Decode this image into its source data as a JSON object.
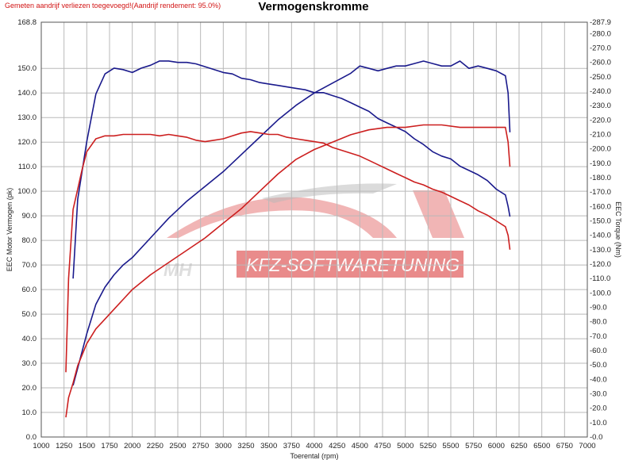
{
  "header": {
    "note": "Gemeten aandrijf verliezen toegevoegd!(Aandrijf rendement: 95.0%)",
    "title": "Vermogenskromme"
  },
  "watermark": {
    "left_text": "MH",
    "banner_text": "KFZ-SOFTWARETUNING"
  },
  "colors": {
    "blue_series": "#1a1a8c",
    "red_series": "#cc1f1f",
    "grid": "#b9b9b9",
    "watermark_red": "#e05a5a",
    "watermark_gray": "#b8b8b8"
  },
  "chart_data": {
    "type": "line",
    "title": "Vermogenskromme",
    "xlabel": "Toerental (rpm)",
    "ylabel_left": "EEC Motor Vermogen (pk)",
    "ylabel_right": "EEC Torque (Nm)",
    "xlim": [
      1000,
      7000
    ],
    "ylim_left": [
      0,
      168.8
    ],
    "ylim_right": [
      0,
      287.9
    ],
    "x_ticks": [
      1000,
      1250,
      1500,
      1750,
      2000,
      2250,
      2500,
      2750,
      3000,
      3250,
      3500,
      3750,
      4000,
      4250,
      4500,
      4750,
      5000,
      5250,
      5500,
      5750,
      6000,
      6250,
      6500,
      6750,
      7000
    ],
    "y_left_ticks": [
      "0.0",
      "10.0",
      "20.0",
      "30.0",
      "40.0",
      "50.0",
      "60.0",
      "70.0",
      "80.0",
      "90.0",
      "100.0",
      "110.0",
      "120.0",
      "130.0",
      "140.0",
      "150.0",
      "168.8"
    ],
    "y_left_tick_values": [
      0,
      10,
      20,
      30,
      40,
      50,
      60,
      70,
      80,
      90,
      100,
      110,
      120,
      130,
      140,
      150,
      168.8
    ],
    "y_right_ticks": [
      "0.0",
      "10.0",
      "20.0",
      "30.0",
      "40.0",
      "50.0",
      "60.0",
      "70.0",
      "80.0",
      "90.0",
      "100.0",
      "110.0",
      "120.0",
      "130.0",
      "140.0",
      "150.0",
      "160.0",
      "170.0",
      "180.0",
      "190.0",
      "200.0",
      "210.0",
      "220.0",
      "230.0",
      "240.0",
      "250.0",
      "260.0",
      "270.0",
      "280.0",
      "287.9"
    ],
    "y_right_tick_values": [
      0,
      10,
      20,
      30,
      40,
      50,
      60,
      70,
      80,
      90,
      100,
      110,
      120,
      130,
      140,
      150,
      160,
      170,
      180,
      190,
      200,
      210,
      220,
      230,
      240,
      250,
      260,
      270,
      280,
      287.9
    ],
    "grid": true,
    "series": [
      {
        "kind": "torque",
        "axis": "right",
        "color": "#1a1a8c",
        "points": [
          [
            1350,
            110
          ],
          [
            1400,
            165
          ],
          [
            1500,
            205
          ],
          [
            1600,
            238
          ],
          [
            1700,
            252
          ],
          [
            1800,
            256
          ],
          [
            1900,
            255
          ],
          [
            2000,
            253
          ],
          [
            2100,
            256
          ],
          [
            2200,
            258
          ],
          [
            2300,
            261
          ],
          [
            2400,
            261
          ],
          [
            2500,
            260
          ],
          [
            2600,
            260
          ],
          [
            2700,
            259
          ],
          [
            2800,
            257
          ],
          [
            2900,
            255
          ],
          [
            3000,
            253
          ],
          [
            3100,
            252
          ],
          [
            3200,
            249
          ],
          [
            3300,
            248
          ],
          [
            3400,
            246
          ],
          [
            3500,
            245
          ],
          [
            3600,
            244
          ],
          [
            3700,
            243
          ],
          [
            3800,
            242
          ],
          [
            3900,
            241
          ],
          [
            4000,
            239
          ],
          [
            4100,
            239
          ],
          [
            4200,
            237
          ],
          [
            4300,
            235
          ],
          [
            4400,
            232
          ],
          [
            4500,
            229
          ],
          [
            4600,
            226
          ],
          [
            4700,
            221
          ],
          [
            4800,
            218
          ],
          [
            4900,
            215
          ],
          [
            5000,
            212
          ],
          [
            5100,
            207
          ],
          [
            5200,
            203
          ],
          [
            5300,
            198
          ],
          [
            5400,
            195
          ],
          [
            5500,
            193
          ],
          [
            5600,
            188
          ],
          [
            5700,
            185
          ],
          [
            5800,
            182
          ],
          [
            5900,
            178
          ],
          [
            6000,
            172
          ],
          [
            6100,
            168
          ],
          [
            6130,
            160
          ],
          [
            6150,
            153
          ]
        ]
      },
      {
        "kind": "power",
        "axis": "left",
        "color": "#1a1a8c",
        "points": [
          [
            1350,
            21
          ],
          [
            1400,
            28
          ],
          [
            1500,
            42
          ],
          [
            1600,
            54
          ],
          [
            1700,
            61
          ],
          [
            1800,
            66
          ],
          [
            1900,
            70
          ],
          [
            2000,
            73
          ],
          [
            2200,
            81
          ],
          [
            2400,
            89
          ],
          [
            2600,
            96
          ],
          [
            2800,
            102
          ],
          [
            3000,
            108
          ],
          [
            3200,
            115
          ],
          [
            3400,
            122
          ],
          [
            3600,
            129
          ],
          [
            3800,
            135
          ],
          [
            4000,
            140
          ],
          [
            4200,
            144
          ],
          [
            4400,
            148
          ],
          [
            4500,
            151
          ],
          [
            4600,
            150
          ],
          [
            4700,
            149
          ],
          [
            4800,
            150
          ],
          [
            4900,
            151
          ],
          [
            5000,
            151
          ],
          [
            5100,
            152
          ],
          [
            5200,
            153
          ],
          [
            5300,
            152
          ],
          [
            5400,
            151
          ],
          [
            5500,
            151
          ],
          [
            5600,
            153
          ],
          [
            5700,
            150
          ],
          [
            5800,
            151
          ],
          [
            5900,
            150
          ],
          [
            6000,
            149
          ],
          [
            6100,
            147
          ],
          [
            6130,
            140
          ],
          [
            6150,
            124
          ]
        ]
      },
      {
        "kind": "torque",
        "axis": "right",
        "color": "#cc1f1f",
        "points": [
          [
            1270,
            45
          ],
          [
            1300,
            110
          ],
          [
            1350,
            158
          ],
          [
            1400,
            172
          ],
          [
            1450,
            186
          ],
          [
            1500,
            198
          ],
          [
            1600,
            207
          ],
          [
            1700,
            209
          ],
          [
            1800,
            209
          ],
          [
            1900,
            210
          ],
          [
            2000,
            210
          ],
          [
            2100,
            210
          ],
          [
            2200,
            210
          ],
          [
            2300,
            209
          ],
          [
            2400,
            210
          ],
          [
            2500,
            209
          ],
          [
            2600,
            208
          ],
          [
            2700,
            206
          ],
          [
            2800,
            205
          ],
          [
            2900,
            206
          ],
          [
            3000,
            207
          ],
          [
            3100,
            209
          ],
          [
            3200,
            211
          ],
          [
            3300,
            212
          ],
          [
            3400,
            211
          ],
          [
            3500,
            210
          ],
          [
            3600,
            210
          ],
          [
            3700,
            208
          ],
          [
            3800,
            207
          ],
          [
            3900,
            206
          ],
          [
            4000,
            205
          ],
          [
            4100,
            204
          ],
          [
            4200,
            201
          ],
          [
            4300,
            199
          ],
          [
            4400,
            197
          ],
          [
            4500,
            195
          ],
          [
            4600,
            192
          ],
          [
            4700,
            189
          ],
          [
            4800,
            186
          ],
          [
            4900,
            183
          ],
          [
            5000,
            180
          ],
          [
            5100,
            177
          ],
          [
            5200,
            175
          ],
          [
            5300,
            172
          ],
          [
            5400,
            170
          ],
          [
            5500,
            167
          ],
          [
            5600,
            164
          ],
          [
            5700,
            161
          ],
          [
            5800,
            157
          ],
          [
            5900,
            154
          ],
          [
            6000,
            150
          ],
          [
            6100,
            146
          ],
          [
            6130,
            140
          ],
          [
            6150,
            130
          ]
        ]
      },
      {
        "kind": "power",
        "axis": "left",
        "color": "#cc1f1f",
        "points": [
          [
            1270,
            8
          ],
          [
            1300,
            16
          ],
          [
            1350,
            22
          ],
          [
            1400,
            29
          ],
          [
            1500,
            38
          ],
          [
            1600,
            44
          ],
          [
            1700,
            48
          ],
          [
            1800,
            52
          ],
          [
            1900,
            56
          ],
          [
            2000,
            60
          ],
          [
            2200,
            66
          ],
          [
            2400,
            71
          ],
          [
            2600,
            76
          ],
          [
            2800,
            81
          ],
          [
            3000,
            87
          ],
          [
            3200,
            93
          ],
          [
            3400,
            100
          ],
          [
            3600,
            107
          ],
          [
            3800,
            113
          ],
          [
            4000,
            117
          ],
          [
            4200,
            120
          ],
          [
            4400,
            123
          ],
          [
            4600,
            125
          ],
          [
            4800,
            126
          ],
          [
            5000,
            126
          ],
          [
            5200,
            127
          ],
          [
            5400,
            127
          ],
          [
            5600,
            126
          ],
          [
            5800,
            126
          ],
          [
            6000,
            126
          ],
          [
            6100,
            126
          ],
          [
            6130,
            120
          ],
          [
            6150,
            110
          ]
        ]
      }
    ]
  }
}
